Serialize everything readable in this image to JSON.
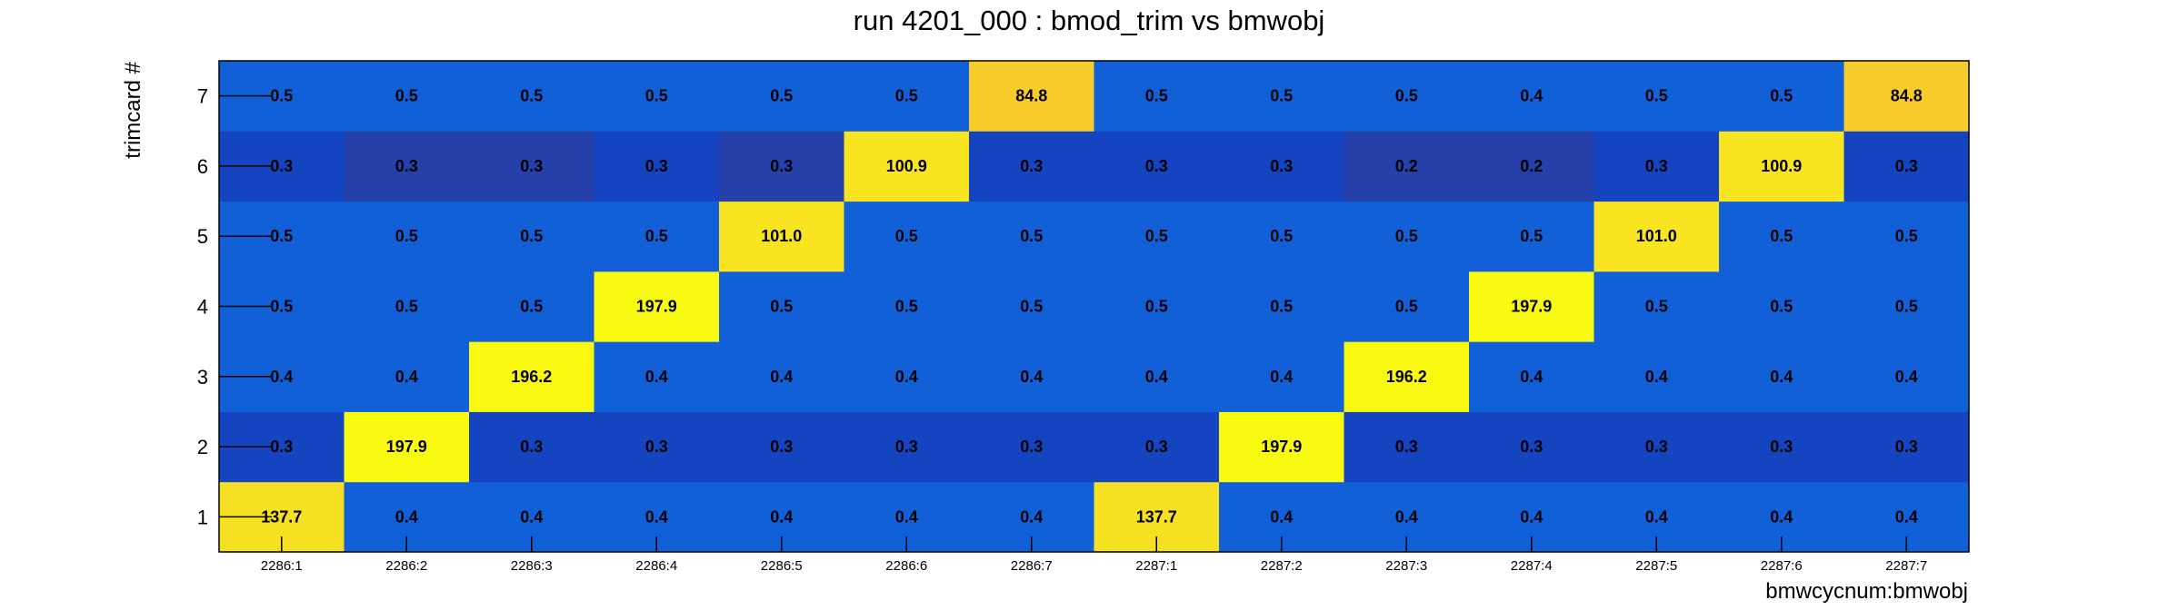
{
  "chart_data": {
    "type": "heatmap",
    "title": "run 4201_000 : bmod_trim vs bmwobj",
    "xlabel": "bmwcycnum:bmwobj",
    "ylabel": "trimcard #",
    "x_categories": [
      "2286:1",
      "2286:2",
      "2286:3",
      "2286:4",
      "2286:5",
      "2286:6",
      "2286:7",
      "2287:1",
      "2287:2",
      "2287:3",
      "2287:4",
      "2287:5",
      "2287:6",
      "2287:7"
    ],
    "y_categories": [
      "1",
      "2",
      "3",
      "4",
      "5",
      "6",
      "7"
    ],
    "values": [
      [
        137.7,
        0.4,
        0.4,
        0.4,
        0.4,
        0.4,
        0.4,
        137.7,
        0.4,
        0.4,
        0.4,
        0.4,
        0.4,
        0.4
      ],
      [
        0.3,
        197.9,
        0.3,
        0.3,
        0.3,
        0.3,
        0.3,
        0.3,
        197.9,
        0.3,
        0.3,
        0.3,
        0.3,
        0.3
      ],
      [
        0.4,
        0.4,
        196.2,
        0.4,
        0.4,
        0.4,
        0.4,
        0.4,
        0.4,
        196.2,
        0.4,
        0.4,
        0.4,
        0.4
      ],
      [
        0.5,
        0.5,
        0.5,
        197.9,
        0.5,
        0.5,
        0.5,
        0.5,
        0.5,
        0.5,
        197.9,
        0.5,
        0.5,
        0.5
      ],
      [
        0.5,
        0.5,
        0.5,
        0.5,
        101.0,
        0.5,
        0.5,
        0.5,
        0.5,
        0.5,
        0.5,
        101.0,
        0.5,
        0.5
      ],
      [
        0.3,
        0.3,
        0.3,
        0.3,
        0.3,
        100.9,
        0.3,
        0.3,
        0.3,
        0.2,
        0.2,
        0.3,
        100.9,
        0.3
      ],
      [
        0.5,
        0.5,
        0.5,
        0.5,
        0.5,
        0.5,
        84.8,
        0.5,
        0.5,
        0.5,
        0.4,
        0.5,
        0.5,
        84.8
      ]
    ],
    "value_labels": [
      [
        "137.7",
        "0.4",
        "0.4",
        "0.4",
        "0.4",
        "0.4",
        "0.4",
        "137.7",
        "0.4",
        "0.4",
        "0.4",
        "0.4",
        "0.4",
        "0.4"
      ],
      [
        "0.3",
        "197.9",
        "0.3",
        "0.3",
        "0.3",
        "0.3",
        "0.3",
        "0.3",
        "197.9",
        "0.3",
        "0.3",
        "0.3",
        "0.3",
        "0.3"
      ],
      [
        "0.4",
        "0.4",
        "196.2",
        "0.4",
        "0.4",
        "0.4",
        "0.4",
        "0.4",
        "0.4",
        "196.2",
        "0.4",
        "0.4",
        "0.4",
        "0.4"
      ],
      [
        "0.5",
        "0.5",
        "0.5",
        "197.9",
        "0.5",
        "0.5",
        "0.5",
        "0.5",
        "0.5",
        "0.5",
        "197.9",
        "0.5",
        "0.5",
        "0.5"
      ],
      [
        "0.5",
        "0.5",
        "0.5",
        "0.5",
        "101.0",
        "0.5",
        "0.5",
        "0.5",
        "0.5",
        "0.5",
        "0.5",
        "101.0",
        "0.5",
        "0.5"
      ],
      [
        "0.3",
        "0.3",
        "0.3",
        "0.3",
        "0.3",
        "100.9",
        "0.3",
        "0.3",
        "0.3",
        "0.2",
        "0.2",
        "0.3",
        "100.9",
        "0.3"
      ],
      [
        "0.5",
        "0.5",
        "0.5",
        "0.5",
        "0.5",
        "0.5",
        "84.8",
        "0.5",
        "0.5",
        "0.5",
        "0.4",
        "0.5",
        "0.5",
        "84.8"
      ]
    ],
    "cell_colors": [
      [
        "#f5e022",
        "#1160d8",
        "#1160d8",
        "#1160d8",
        "#1160d8",
        "#1160d8",
        "#1160d8",
        "#f5e022",
        "#1160d8",
        "#1160d8",
        "#1160d8",
        "#1160d8",
        "#1160d8",
        "#1160d8"
      ],
      [
        "#1444c0",
        "#f8fa0f",
        "#1444c0",
        "#1444c0",
        "#1444c0",
        "#1444c0",
        "#1444c0",
        "#1444c0",
        "#f8fa0f",
        "#1444c0",
        "#1444c0",
        "#1444c0",
        "#1444c0",
        "#1444c0"
      ],
      [
        "#1160d8",
        "#1160d8",
        "#f8f90f",
        "#1160d8",
        "#1160d8",
        "#1160d8",
        "#1160d8",
        "#1160d8",
        "#1160d8",
        "#f8f90f",
        "#1160d8",
        "#1160d8",
        "#1160d8",
        "#1160d8"
      ],
      [
        "#1160d8",
        "#1160d8",
        "#1160d8",
        "#f8fa0f",
        "#1160d8",
        "#1160d8",
        "#1160d8",
        "#1160d8",
        "#1160d8",
        "#1160d8",
        "#f8fa0f",
        "#1160d8",
        "#1160d8",
        "#1160d8"
      ],
      [
        "#1160d8",
        "#1160d8",
        "#1160d8",
        "#1160d8",
        "#f8e420",
        "#1160d8",
        "#1160d8",
        "#1160d8",
        "#1160d8",
        "#1160d8",
        "#1160d8",
        "#f8e420",
        "#1160d8",
        "#1160d8"
      ],
      [
        "#1444c0",
        "#2540a8",
        "#2540a8",
        "#1444c0",
        "#2540a8",
        "#f8e420",
        "#1444c0",
        "#1444c0",
        "#1444c0",
        "#2540a8",
        "#2540a8",
        "#1444c0",
        "#f8e420",
        "#1444c0"
      ],
      [
        "#1160d8",
        "#1160d8",
        "#1160d8",
        "#1160d8",
        "#1160d8",
        "#1160d8",
        "#f7cc2a",
        "#1160d8",
        "#1160d8",
        "#1160d8",
        "#1160d8",
        "#1160d8",
        "#1160d8",
        "#f7cc2a"
      ]
    ],
    "grid": false,
    "legend": "none"
  }
}
